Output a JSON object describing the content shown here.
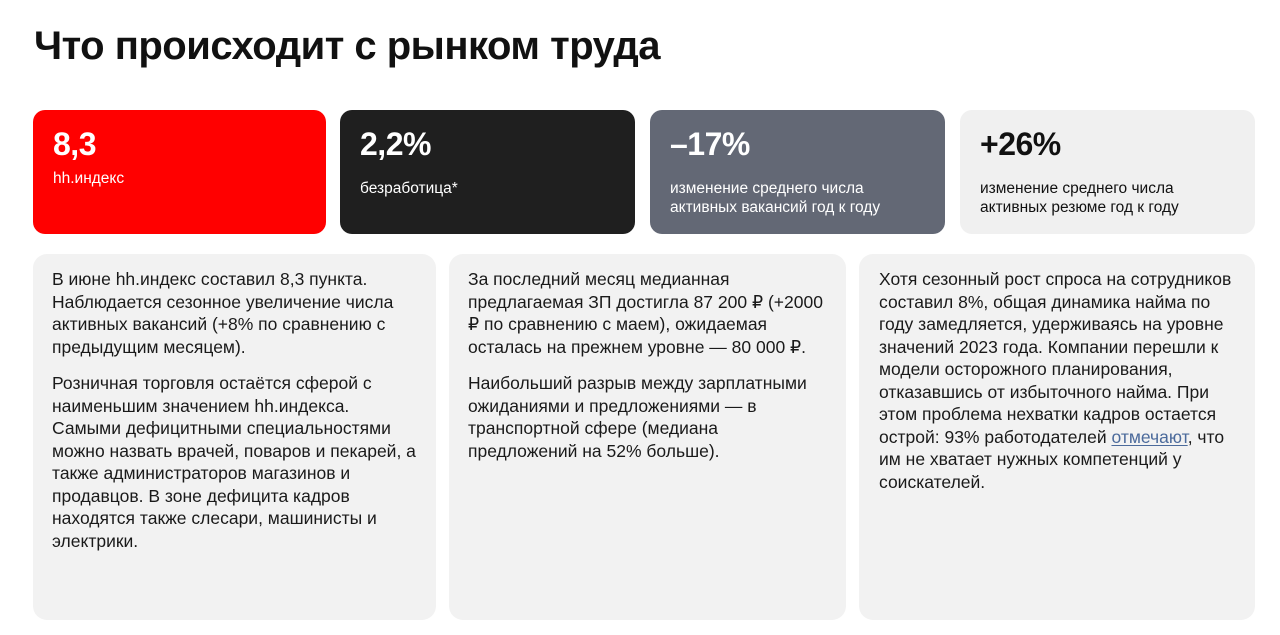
{
  "title": "Что происходит с рынком труда",
  "stats": [
    {
      "value": "8,3",
      "caption": "hh.индекс",
      "color": "#ff0000"
    },
    {
      "value": "2,2%",
      "caption": "безработица*",
      "color": "#1f1f1f"
    },
    {
      "value": "–17%",
      "caption": "изменение среднего числа активных вакансий год к году",
      "color": "#636875"
    },
    {
      "value": "+26%",
      "caption": "изменение среднего числа активных резюме год к году",
      "color": "#f0f0f0"
    }
  ],
  "cards": [
    {
      "paragraphs": [
        "В июне hh.индекс составил 8,3 пункта. Наблюдается сезонное увеличение числа активных вакансий (+8% по сравнению с предыдущим месяцем).",
        "Розничная торговля остаётся сферой с наименьшим значением hh.индекса. Самыми дефицитными специальностями можно назвать врачей, поваров и пекарей, а также администраторов магазинов и продавцов. В зоне дефицита кадров находятся также слесари, машинисты и электрики."
      ]
    },
    {
      "paragraphs": [
        "За последний месяц медианная предлагаемая ЗП достигла 87 200 ₽ (+2000 ₽ по сравнению с маем), ожидаемая осталась на прежнем уровне — 80 000 ₽.",
        "Наибольший разрыв между зарплатными ожиданиями и предложениями — в транспортной сфере (медиана предложений на 52% больше)."
      ]
    },
    {
      "text_before_link": "Хотя сезонный рост спроса на сотрудников составил 8%, общая динамика найма по году замедляется, удерживаясь на уровне значений 2023 года. Компании перешли к модели осторожного планирования, отказавшись от избыточного найма. При этом проблема нехватки кадров остается острой: 93% работодателей ",
      "link_text": "отмечают",
      "text_after_link": ", что им не хватает нужных компетенций у соискателей."
    }
  ]
}
